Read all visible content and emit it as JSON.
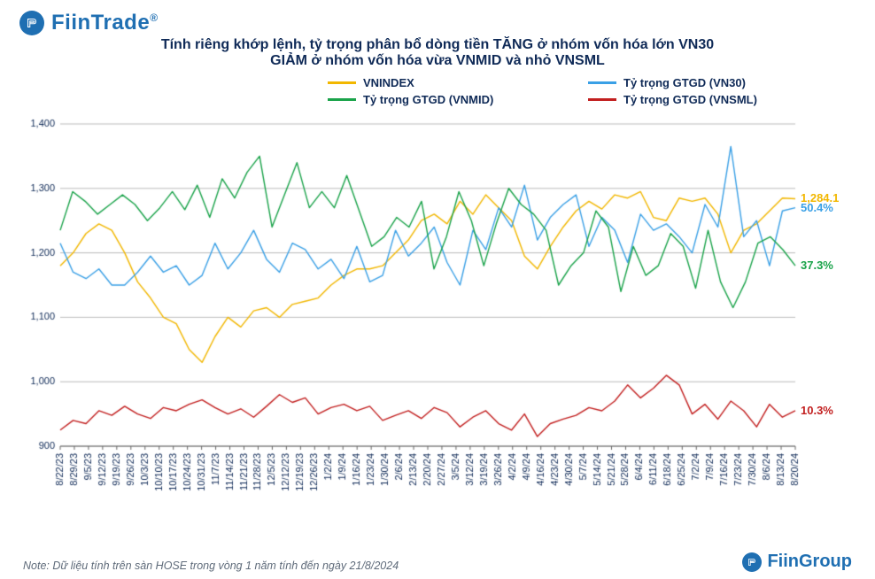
{
  "brand_top": {
    "name": "FiinTrade",
    "reg_mark": "®"
  },
  "brand_bottom": {
    "name": "FiinGroup"
  },
  "title": {
    "line1": "Tính riêng khớp lệnh, tỷ trọng phân bổ dòng tiền TĂNG ở nhóm vốn hóa lớn VN30",
    "line2": "GIẢM ở nhóm vốn hóa vừa VNMID và nhỏ VNSML"
  },
  "legend": {
    "items": [
      {
        "label": "VNINDEX",
        "color": "#f2b700"
      },
      {
        "label": "Tỷ trọng GTGD (VN30)",
        "color": "#3aa0e6"
      },
      {
        "label": "Tỷ trọng GTGD (VNMID)",
        "color": "#1aa34a"
      },
      {
        "label": "Tỷ trọng GTGD (VNSML)",
        "color": "#c21f1f"
      }
    ]
  },
  "chart": {
    "type": "line",
    "background": "#ffffff",
    "grid_color": "#bcbcbc",
    "axis_color": "#666666",
    "tick_font_size": 11,
    "tick_color": "#0f2a57",
    "line_width": 1.4,
    "y": {
      "min": 900,
      "max": 1400,
      "step": 100
    },
    "x_labels": [
      "8/22/23",
      "8/29/23",
      "9/5/23",
      "9/12/23",
      "9/19/23",
      "9/26/23",
      "10/3/23",
      "10/10/23",
      "10/17/23",
      "10/24/23",
      "10/31/23",
      "11/7/23",
      "11/14/23",
      "11/21/23",
      "11/28/23",
      "12/5/23",
      "12/12/23",
      "12/19/23",
      "12/26/23",
      "1/2/24",
      "1/9/24",
      "1/16/24",
      "1/23/24",
      "1/30/24",
      "2/6/24",
      "2/13/24",
      "2/20/24",
      "2/27/24",
      "3/5/24",
      "3/12/24",
      "3/19/24",
      "3/26/24",
      "4/2/24",
      "4/9/24",
      "4/16/24",
      "4/23/24",
      "4/30/24",
      "5/7/24",
      "5/14/24",
      "5/21/24",
      "5/28/24",
      "6/4/24",
      "6/11/24",
      "6/18/24",
      "6/25/24",
      "7/2/24",
      "7/9/24",
      "7/16/24",
      "7/23/24",
      "7/30/24",
      "8/6/24",
      "8/13/24",
      "8/20/24"
    ],
    "series": [
      {
        "name": "VNINDEX",
        "color": "#f2b700",
        "end_label": "1,284.1",
        "data": [
          1180,
          1200,
          1230,
          1245,
          1235,
          1200,
          1155,
          1130,
          1100,
          1090,
          1050,
          1030,
          1070,
          1100,
          1085,
          1110,
          1115,
          1100,
          1120,
          1125,
          1130,
          1150,
          1165,
          1175,
          1175,
          1180,
          1200,
          1220,
          1250,
          1260,
          1245,
          1280,
          1260,
          1290,
          1270,
          1250,
          1195,
          1175,
          1210,
          1240,
          1265,
          1280,
          1268,
          1290,
          1285,
          1295,
          1255,
          1250,
          1285,
          1280,
          1285,
          1260,
          1200,
          1235,
          1245,
          1265,
          1285,
          1284
        ]
      },
      {
        "name": "VN30",
        "color": "#3aa0e6",
        "end_label": "50.4%",
        "data": [
          1215,
          1170,
          1160,
          1175,
          1150,
          1150,
          1170,
          1195,
          1170,
          1180,
          1150,
          1165,
          1215,
          1175,
          1200,
          1235,
          1190,
          1170,
          1215,
          1205,
          1175,
          1190,
          1160,
          1210,
          1155,
          1165,
          1235,
          1195,
          1215,
          1240,
          1185,
          1150,
          1235,
          1205,
          1270,
          1240,
          1305,
          1220,
          1255,
          1275,
          1290,
          1210,
          1255,
          1235,
          1185,
          1260,
          1235,
          1245,
          1225,
          1200,
          1275,
          1240,
          1365,
          1225,
          1250,
          1180,
          1265,
          1270
        ]
      },
      {
        "name": "VNMID",
        "color": "#1aa34a",
        "end_label": "37.3%",
        "data": [
          1235,
          1295,
          1280,
          1260,
          1275,
          1290,
          1275,
          1250,
          1270,
          1295,
          1267,
          1305,
          1255,
          1315,
          1285,
          1325,
          1350,
          1240,
          1290,
          1340,
          1270,
          1295,
          1270,
          1320,
          1265,
          1210,
          1225,
          1255,
          1240,
          1280,
          1175,
          1225,
          1295,
          1250,
          1180,
          1245,
          1300,
          1275,
          1260,
          1235,
          1150,
          1180,
          1200,
          1265,
          1240,
          1140,
          1210,
          1165,
          1180,
          1230,
          1210,
          1145,
          1235,
          1155,
          1115,
          1155,
          1215,
          1225,
          1205,
          1180
        ]
      },
      {
        "name": "VNSML",
        "color": "#c21f1f",
        "end_label": "10.3%",
        "data": [
          925,
          940,
          935,
          955,
          948,
          962,
          950,
          943,
          960,
          955,
          965,
          972,
          960,
          950,
          958,
          945,
          962,
          980,
          968,
          975,
          950,
          960,
          965,
          955,
          962,
          940,
          948,
          955,
          943,
          960,
          952,
          930,
          945,
          955,
          935,
          925,
          950,
          915,
          935,
          942,
          948,
          960,
          955,
          970,
          995,
          975,
          990,
          1010,
          995,
          950,
          965,
          942,
          970,
          955,
          930,
          965,
          945,
          955
        ]
      }
    ]
  },
  "note": "Note: Dữ liệu tính trên sàn HOSE trong vòng 1 năm tính đến ngày 21/8/2024"
}
